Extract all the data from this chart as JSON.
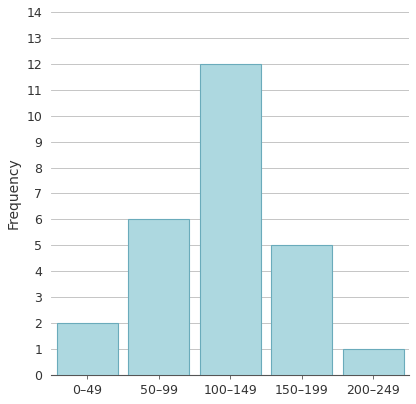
{
  "categories": [
    "0–49",
    "50–99",
    "100–149",
    "150–199",
    "200–249"
  ],
  "values": [
    2,
    6,
    12,
    5,
    1
  ],
  "bar_color": "#add8e0",
  "bar_edge_color": "#6aabbb",
  "ylabel": "Frequency",
  "ylim": [
    0,
    14
  ],
  "yticks": [
    0,
    1,
    2,
    3,
    4,
    5,
    6,
    7,
    8,
    9,
    10,
    11,
    12,
    13,
    14
  ],
  "bar_width": 0.85,
  "background_color": "#ffffff",
  "grid_color": "#bbbbbb",
  "tick_fontsize": 9,
  "label_fontsize": 10
}
